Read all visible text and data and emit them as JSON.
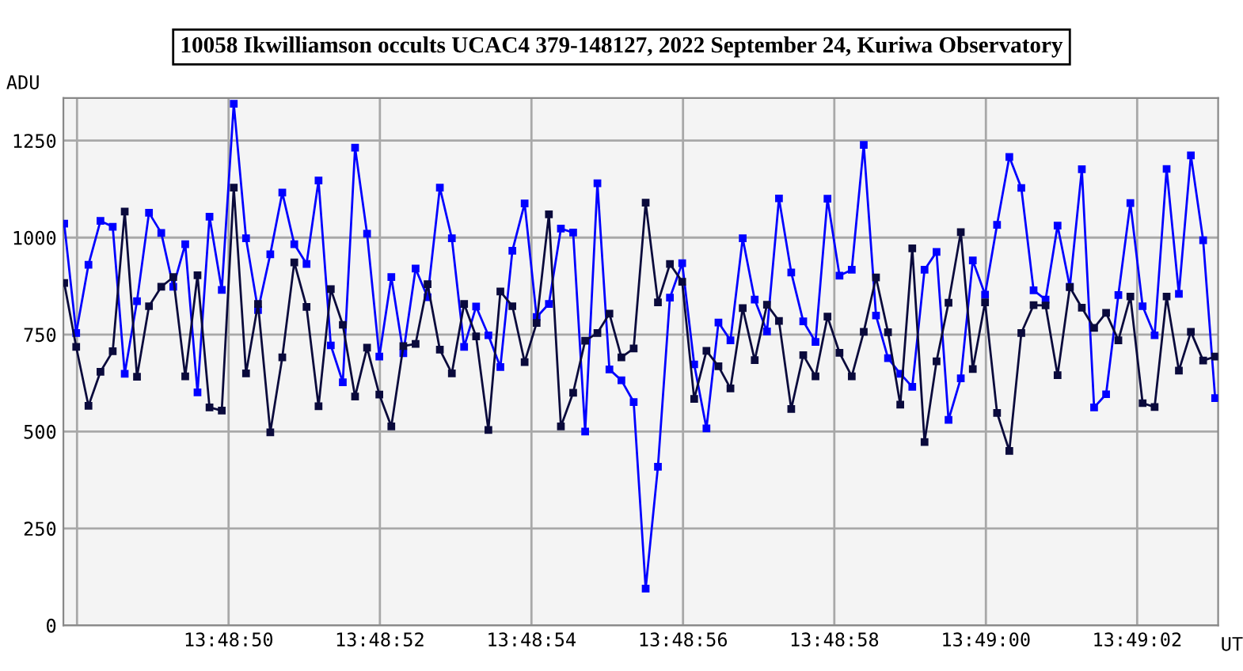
{
  "chart_data": {
    "type": "line",
    "title": "10058 Ikwilliamson occults UCAC4 379-148127, 2022 September 24, Kuriwa Observatory",
    "xlabel": "UT",
    "ylabel": "ADU",
    "x": [
      13.813286,
      13.81333,
      13.813375,
      13.813419,
      13.813464,
      13.813508,
      13.813553,
      13.813597,
      13.813642,
      13.813686,
      13.81373,
      13.813775,
      13.813819,
      13.813864,
      13.813908,
      13.813953,
      13.813997,
      13.814042,
      13.814086,
      13.81413,
      13.814175,
      13.814219,
      13.814264,
      13.814308,
      13.814353,
      13.814397,
      13.814442,
      13.814486,
      13.81453,
      13.814575,
      13.814619,
      13.814664,
      13.814708,
      13.814753,
      13.814797,
      13.814842,
      13.814886,
      13.81493,
      13.814975,
      13.815019,
      13.815064,
      13.815108,
      13.815153,
      13.815197,
      13.815242,
      13.815286,
      13.81533,
      13.815375,
      13.815419,
      13.815464,
      13.815508,
      13.815553,
      13.815597,
      13.815642,
      13.815686,
      13.81573,
      13.815775,
      13.815819,
      13.815864,
      13.815908,
      13.815953,
      13.815997,
      13.816042,
      13.816086,
      13.81613,
      13.816175,
      13.816219,
      13.816264,
      13.816308,
      13.816353,
      13.816397,
      13.816442,
      13.816486,
      13.81653,
      13.816575,
      13.816619,
      13.816664,
      13.816708,
      13.816753,
      13.816797,
      13.816842,
      13.816886,
      13.81693,
      13.816975,
      13.817019,
      13.817064,
      13.817108,
      13.817153,
      13.817197,
      13.817242,
      13.817286,
      13.81733,
      13.817375,
      13.817419,
      13.817464,
      13.817508
    ],
    "series": [
      {
        "color": "#0000ff",
        "values": [
          1036,
          754,
          930,
          1043,
          1028,
          649,
          836,
          1064,
          1012,
          873,
          983,
          601,
          1054,
          865,
          1345,
          998,
          813,
          957,
          1116,
          983,
          932,
          1147,
          722,
          627,
          1232,
          1010,
          693,
          898,
          702,
          920,
          846,
          1129,
          998,
          718,
          822,
          748,
          666,
          966,
          1088,
          795,
          829,
          1023,
          1013,
          500,
          1140,
          660,
          632,
          576,
          95,
          409,
          845,
          934,
          673,
          508,
          781,
          735,
          998,
          840,
          758,
          1101,
          910,
          784,
          731,
          1100,
          902,
          917,
          1239,
          799,
          689,
          649,
          615,
          917,
          963,
          530,
          637,
          941,
          853,
          1033,
          1208,
          1128,
          864,
          840,
          1031,
          873,
          1176,
          562,
          596,
          852,
          1089,
          823,
          748,
          1177,
          855,
          1212,
          993,
          586
        ]
      },
      {
        "color": "#0a0a3c",
        "values": [
          883,
          718,
          566,
          654,
          707,
          1067,
          641,
          823,
          873,
          898,
          642,
          903,
          562,
          554,
          1129,
          650,
          829,
          498,
          691,
          936,
          821,
          565,
          867,
          775,
          590,
          716,
          595,
          513,
          720,
          726,
          880,
          711,
          650,
          829,
          745,
          504,
          861,
          823,
          679,
          780,
          1060,
          513,
          600,
          734,
          754,
          804,
          691,
          714,
          1090,
          833,
          932,
          886,
          584,
          708,
          668,
          611,
          818,
          684,
          827,
          785,
          558,
          697,
          642,
          796,
          703,
          642,
          757,
          897,
          756,
          569,
          972,
          473,
          681,
          832,
          1014,
          661,
          833,
          548,
          450,
          754,
          826,
          825,
          645,
          872,
          819,
          767,
          806,
          735,
          848,
          573,
          563,
          848,
          657,
          757,
          683,
          693
        ]
      }
    ],
    "xlim": [
      13.813283,
      13.817519
    ],
    "xticks": [
      {
        "value": 13.813333,
        "label": null
      },
      {
        "value": 13.813889,
        "label": "13:48:50"
      },
      {
        "value": 13.814444,
        "label": "13:48:52"
      },
      {
        "value": 13.815,
        "label": "13:48:54"
      },
      {
        "value": 13.815556,
        "label": "13:48:56"
      },
      {
        "value": 13.816111,
        "label": "13:48:58"
      },
      {
        "value": 13.816667,
        "label": "13:49:00"
      },
      {
        "value": 13.817222,
        "label": "13:49:02"
      }
    ],
    "ylim": [
      0,
      1360
    ],
    "yticks": [
      0,
      250,
      500,
      750,
      1000,
      1250
    ],
    "grid": true,
    "marker": "square",
    "line_style": "solid",
    "legend": false
  }
}
